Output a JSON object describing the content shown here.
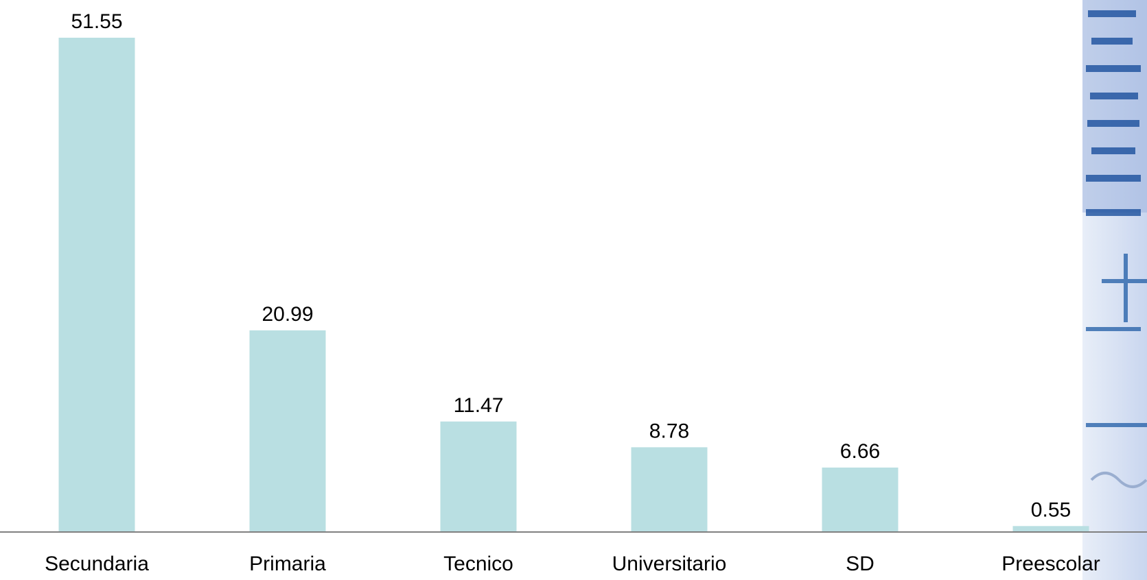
{
  "chart_data": {
    "type": "bar",
    "categories": [
      "Secundaria",
      "Primaria",
      "Tecnico",
      "Universitario",
      "SD",
      "Preescolar"
    ],
    "values": [
      51.55,
      20.99,
      11.47,
      8.78,
      6.66,
      0.55
    ],
    "color": "#b9dfe2"
  }
}
